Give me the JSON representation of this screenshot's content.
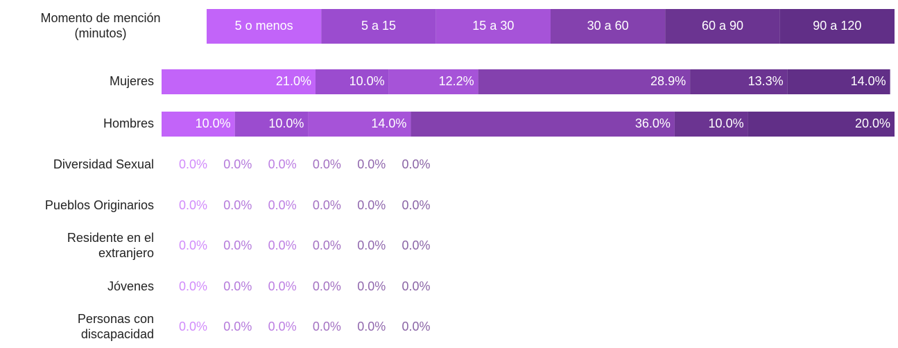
{
  "chart_data": {
    "type": "stacked_bar_h",
    "legend_title": "Momento de mención\n(minutos)",
    "categories": [
      "Mujeres",
      "Hombres",
      "Diversidad Sexual",
      "Pueblos Originarios",
      "Residente en el\nextranjero",
      "Jóvenes",
      "Personas con\ndiscapacidad"
    ],
    "xlim": [
      0,
      100
    ],
    "series": [
      {
        "name": "5  o menos",
        "color": "#c264f9",
        "values": [
          21.0,
          10.0,
          0,
          0,
          0,
          0,
          0
        ],
        "value_labels": [
          "21.0%",
          "10.0%",
          "0.0%",
          "0.0%",
          "0.0%",
          "0.0%",
          "0.0%"
        ]
      },
      {
        "name": "5  a 15",
        "color": "#9b4ccf",
        "values": [
          10.0,
          10.0,
          0,
          0,
          0,
          0,
          0
        ],
        "value_labels": [
          "10.0%",
          "10.0%",
          "0.0%",
          "0.0%",
          "0.0%",
          "0.0%",
          "0.0%"
        ]
      },
      {
        "name": "15 a 30",
        "color": "#a653d8",
        "values": [
          12.2,
          14.0,
          0,
          0,
          0,
          0,
          0
        ],
        "value_labels": [
          "12.2%",
          "14.0%",
          "0.0%",
          "0.0%",
          "0.0%",
          "0.0%",
          "0.0%"
        ]
      },
      {
        "name": "30 a 60",
        "color": "#8441ae",
        "values": [
          28.9,
          36.0,
          0,
          0,
          0,
          0,
          0
        ],
        "value_labels": [
          "28.9%",
          "36.0%",
          "0.0%",
          "0.0%",
          "0.0%",
          "0.0%",
          "0.0%"
        ]
      },
      {
        "name": "60 a 90",
        "color": "#6b3491",
        "values": [
          13.3,
          10.0,
          0,
          0,
          0,
          0,
          0
        ],
        "value_labels": [
          "13.3%",
          "10.0%",
          "0.0%",
          "0.0%",
          "0.0%",
          "0.0%",
          "0.0%"
        ]
      },
      {
        "name": "90 a 120",
        "color": "#612f87",
        "values": [
          14.0,
          20.0,
          0,
          0,
          0,
          0,
          0
        ],
        "value_labels": [
          "14.0%",
          "20.0%",
          "0.0%",
          "0.0%",
          "0.0%",
          "0.0%",
          "0.0%"
        ]
      }
    ]
  }
}
